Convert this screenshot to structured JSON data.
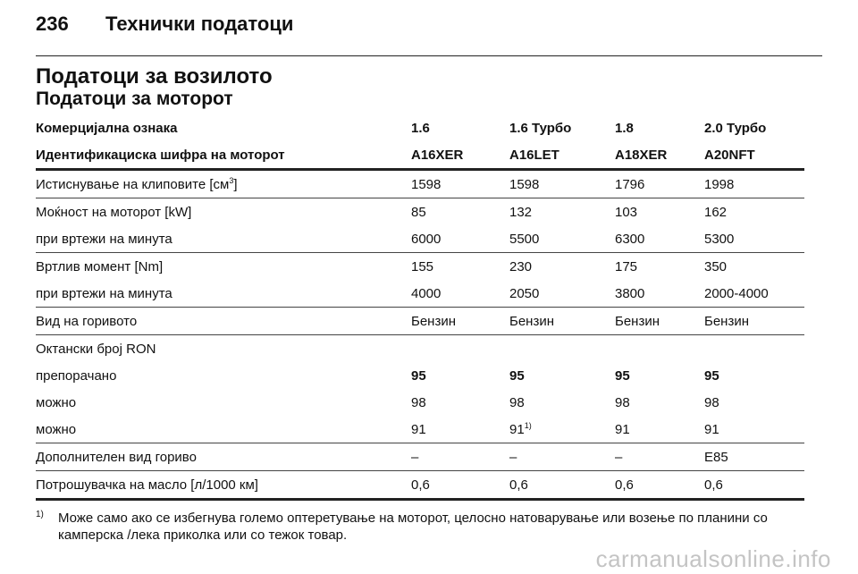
{
  "header": {
    "page_number": "236",
    "section_title": "Технички податоци"
  },
  "title": "Податоци за возилото",
  "subtitle": "Податоци за моторот",
  "table": {
    "header_rows": [
      [
        "Комерцијална ознака",
        "1.6",
        "1.6 Турбо",
        "1.8",
        "2.0 Турбо"
      ],
      [
        "Идентификациска шифра на моторот",
        "A16XER",
        "A16LET",
        "A18XER",
        "A20NFT"
      ]
    ],
    "rows": [
      {
        "label": "Истиснување на клиповите [см",
        "label_sup": "3",
        "label_after": "]",
        "values": [
          "1598",
          "1598",
          "1796",
          "1998"
        ]
      },
      {
        "label": "Моќност на моторот [kW]",
        "values": [
          "85",
          "132",
          "103",
          "162"
        ]
      },
      {
        "label": "при вртежи на минута",
        "values": [
          "6000",
          "5500",
          "6300",
          "5300"
        ]
      },
      {
        "label": "Вртлив момент [Nm]",
        "values": [
          "155",
          "230",
          "175",
          "350"
        ]
      },
      {
        "label": "при вртежи на минута",
        "values": [
          "4000",
          "2050",
          "3800",
          "2000-4000"
        ]
      },
      {
        "label": "Вид на горивото",
        "values": [
          "Бензин",
          "Бензин",
          "Бензин",
          "Бензин"
        ]
      },
      {
        "label": "Октански број RON",
        "values": [
          "",
          "",
          "",
          ""
        ]
      },
      {
        "label": "препорачано",
        "values": [
          "95",
          "95",
          "95",
          "95"
        ]
      },
      {
        "label": "можно",
        "values": [
          "98",
          "98",
          "98",
          "98"
        ]
      },
      {
        "label": "можно",
        "values": [
          "91",
          "91",
          "91",
          "91"
        ],
        "value2_sup": "1)"
      },
      {
        "label": "Дополнителен вид гориво",
        "values": [
          "–",
          "–",
          "–",
          "E85"
        ]
      },
      {
        "label": "Потрошувачка на масло [л/1000 км]",
        "values": [
          "0,6",
          "0,6",
          "0,6",
          "0,6"
        ]
      }
    ]
  },
  "footnote": {
    "mark": "1)",
    "text": "Може само ако се избегнува големо оптеретување на моторот, целосно натоварување или возење по планини со камперска /лека приколка или со тежок товар."
  },
  "watermark": "carmanualsonline.info"
}
